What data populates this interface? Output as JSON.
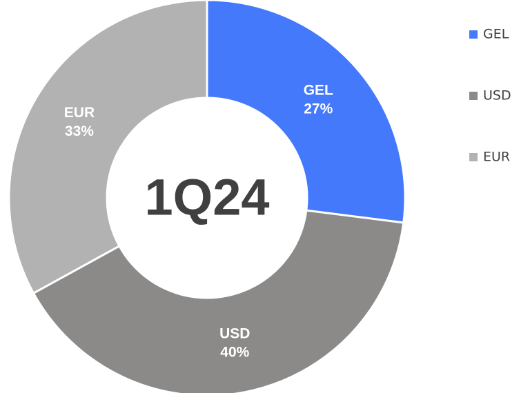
{
  "chart_data": {
    "type": "donut",
    "title": "1Q24",
    "categories": [
      "GEL",
      "USD",
      "EUR"
    ],
    "values": [
      27,
      40,
      33
    ],
    "value_labels": [
      "27%",
      "40%",
      "33%"
    ],
    "colors": [
      "#4479fc",
      "#8c8a89",
      "#b2b2b2"
    ],
    "legend": "right"
  }
}
